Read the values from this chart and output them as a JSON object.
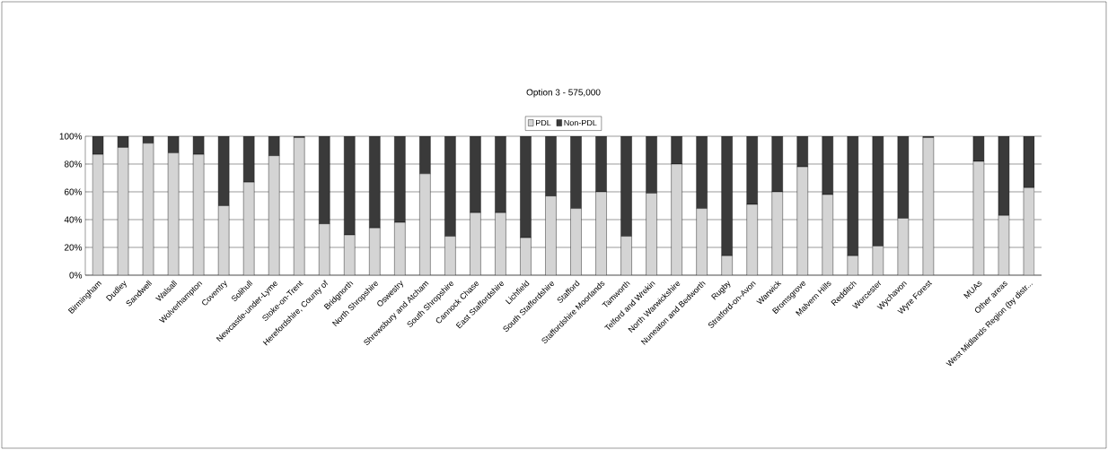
{
  "chart_data": {
    "type": "bar",
    "title": "Option 3 - 575,000",
    "stacked": true,
    "categories": [
      "Birmingham",
      "Dudley",
      "Sandwell",
      "Walsall",
      "Wolverhampton",
      "Coventry",
      "Solihull",
      "Newcastle-under-Lyme",
      "Stoke-on-Trent",
      "Herefordshire, County of",
      "Bridgnorth",
      "North Shropshire",
      "Oswestry",
      "Shrewsbury and Atcham",
      "South Shropshire",
      "Cannock Chase",
      "East Staffordshire",
      "Lichfield",
      "South Staffordshire",
      "Stafford",
      "Staffordshire Moorlands",
      "Tamworth",
      "Telford and Wrekin",
      "North Warwickshire",
      "Nuneaton and Bedworth",
      "Rugby",
      "Stratford-on-Avon",
      "Warwick",
      "Bromsgrove",
      "Malvern Hills",
      "Redditch",
      "Worcester",
      "Wychavon",
      "Wyre Forest",
      null,
      "MUAs",
      "Other areas",
      "West Midlands Region (by distr..."
    ],
    "series": [
      {
        "name": "PDL",
        "color": "#d4d4d4",
        "values": [
          87,
          92,
          95,
          88,
          87,
          50,
          67,
          86,
          99,
          37,
          29,
          34,
          38,
          73,
          28,
          45,
          45,
          27,
          57,
          48,
          60,
          28,
          59,
          80,
          48,
          14,
          51,
          60,
          78,
          58,
          14,
          21,
          41,
          99,
          null,
          82,
          43,
          63
        ]
      },
      {
        "name": "Non-PDL",
        "color": "#3a3a3a",
        "values": [
          13,
          8,
          5,
          12,
          13,
          50,
          33,
          14,
          1,
          63,
          71,
          66,
          62,
          27,
          72,
          55,
          55,
          73,
          43,
          52,
          40,
          72,
          41,
          20,
          52,
          86,
          49,
          40,
          22,
          42,
          86,
          79,
          59,
          1,
          null,
          18,
          57,
          37
        ]
      }
    ],
    "ylim": [
      0,
      100
    ],
    "yticks": [
      {
        "value": 0,
        "label": "0%"
      },
      {
        "value": 20,
        "label": "20%"
      },
      {
        "value": 40,
        "label": "40%"
      },
      {
        "value": 60,
        "label": "60%"
      },
      {
        "value": 80,
        "label": "80%"
      },
      {
        "value": 100,
        "label": "100%"
      }
    ],
    "grid": "y",
    "legend": "top"
  }
}
